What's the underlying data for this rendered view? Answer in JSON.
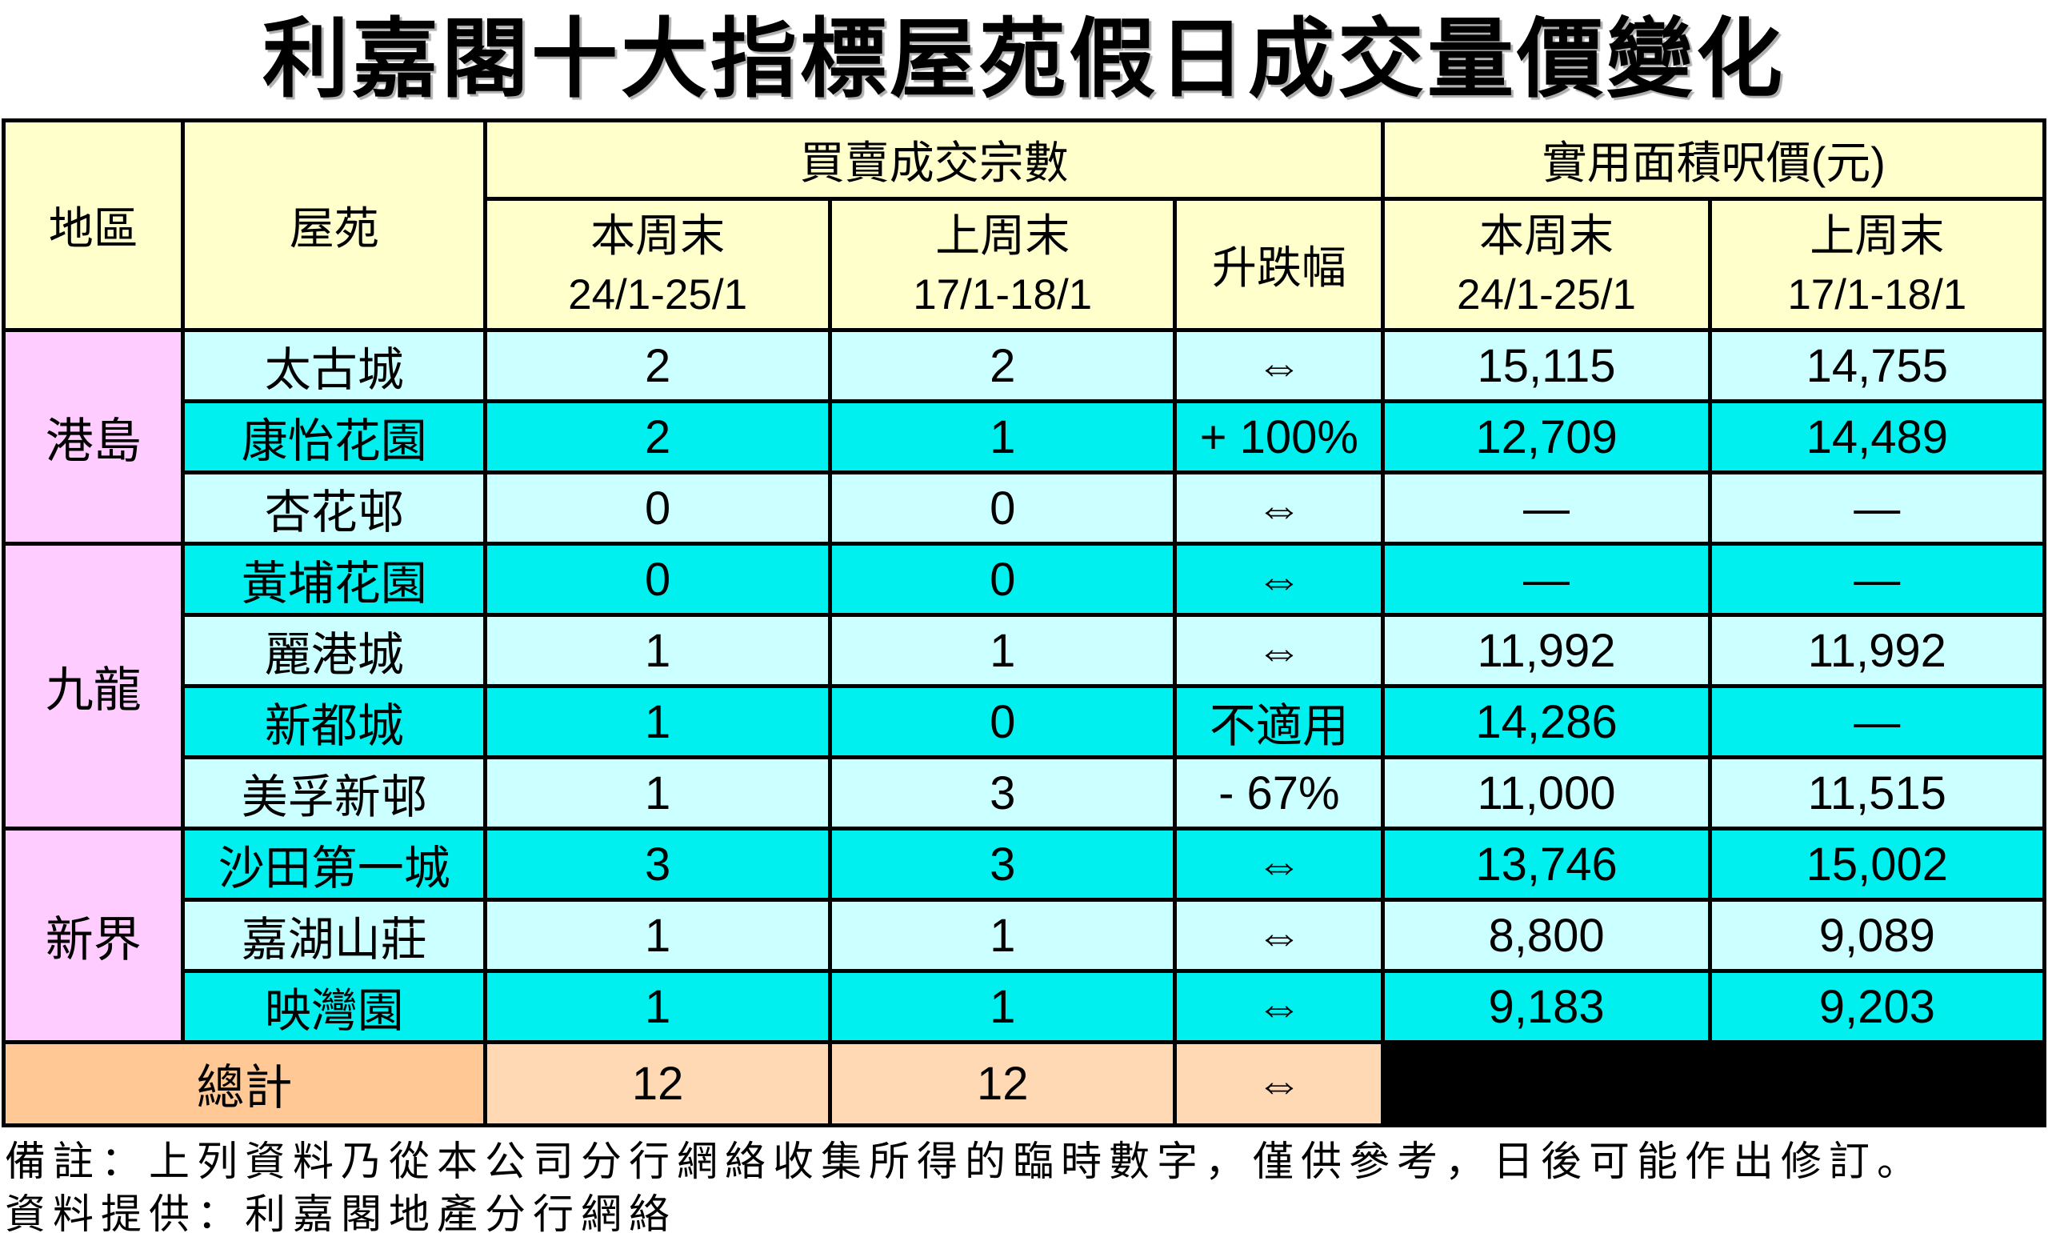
{
  "title": "利嘉閣十大指標屋苑假日成交量價變化",
  "colors": {
    "header_yellow": "#FFFFCC",
    "region_pink": "#FFCCFF",
    "row_light_cyan": "#CCFFFF",
    "row_bright_cyan": "#00F0F0",
    "total_label_orange": "#FFC894",
    "total_value_orange": "#FFD9B3",
    "blank_cell_black": "#000000"
  },
  "table": {
    "headers": {
      "region": "地區",
      "estate": "屋苑",
      "transactions_group": "買賣成交宗數",
      "price_group": "實用面積呎價(元)",
      "this_weekend": "本周末",
      "this_weekend_dates": "24/1-25/1",
      "last_weekend": "上周末",
      "last_weekend_dates": "17/1-18/1",
      "change": "升跌幅"
    },
    "sections": [
      {
        "region": "港島",
        "rows": [
          {
            "estate": "太古城",
            "this_count": "2",
            "last_count": "2",
            "change": "⇔",
            "this_price": "15,115",
            "last_price": "14,755"
          },
          {
            "estate": "康怡花園",
            "this_count": "2",
            "last_count": "1",
            "change": "+ 100%",
            "this_price": "12,709",
            "last_price": "14,489"
          },
          {
            "estate": "杏花邨",
            "this_count": "0",
            "last_count": "0",
            "change": "⇔",
            "this_price": "—",
            "last_price": "—"
          }
        ]
      },
      {
        "region": "九龍",
        "rows": [
          {
            "estate": "黃埔花園",
            "this_count": "0",
            "last_count": "0",
            "change": "⇔",
            "this_price": "—",
            "last_price": "—"
          },
          {
            "estate": "麗港城",
            "this_count": "1",
            "last_count": "1",
            "change": "⇔",
            "this_price": "11,992",
            "last_price": "11,992"
          },
          {
            "estate": "新都城",
            "this_count": "1",
            "last_count": "0",
            "change": "不適用",
            "this_price": "14,286",
            "last_price": "—"
          },
          {
            "estate": "美孚新邨",
            "this_count": "1",
            "last_count": "3",
            "change": "- 67%",
            "this_price": "11,000",
            "last_price": "11,515"
          }
        ]
      },
      {
        "region": "新界",
        "rows": [
          {
            "estate": "沙田第一城",
            "this_count": "3",
            "last_count": "3",
            "change": "⇔",
            "this_price": "13,746",
            "last_price": "15,002"
          },
          {
            "estate": "嘉湖山莊",
            "this_count": "1",
            "last_count": "1",
            "change": "⇔",
            "this_price": "8,800",
            "last_price": "9,089"
          },
          {
            "estate": "映灣園",
            "this_count": "1",
            "last_count": "1",
            "change": "⇔",
            "this_price": "9,183",
            "last_price": "9,203"
          }
        ]
      }
    ],
    "total": {
      "label": "總計",
      "this_count": "12",
      "last_count": "12",
      "change": "⇔"
    }
  },
  "footer": {
    "note": "備註：上列資料乃從本公司分行網絡收集所得的臨時數字，僅供參考，日後可能作出修訂。",
    "source": "資料提供：利嘉閣地產分行網絡"
  },
  "chart_data": {
    "type": "table",
    "title": "利嘉閣十大指標屋苑假日成交量價變化",
    "columns": [
      "地區",
      "屋苑",
      "買賣成交宗數 本周末 24/1-25/1",
      "買賣成交宗數 上周末 17/1-18/1",
      "升跌幅",
      "實用面積呎價(元) 本周末 24/1-25/1",
      "實用面積呎價(元) 上周末 17/1-18/1"
    ],
    "rows": [
      [
        "港島",
        "太古城",
        "2",
        "2",
        "⇔",
        "15,115",
        "14,755"
      ],
      [
        "港島",
        "康怡花園",
        "2",
        "1",
        "+ 100%",
        "12,709",
        "14,489"
      ],
      [
        "港島",
        "杏花邨",
        "0",
        "0",
        "⇔",
        "—",
        "—"
      ],
      [
        "九龍",
        "黃埔花園",
        "0",
        "0",
        "⇔",
        "—",
        "—"
      ],
      [
        "九龍",
        "麗港城",
        "1",
        "1",
        "⇔",
        "11,992",
        "11,992"
      ],
      [
        "九龍",
        "新都城",
        "1",
        "0",
        "不適用",
        "14,286",
        "—"
      ],
      [
        "九龍",
        "美孚新邨",
        "1",
        "3",
        "- 67%",
        "11,000",
        "11,515"
      ],
      [
        "新界",
        "沙田第一城",
        "3",
        "3",
        "⇔",
        "13,746",
        "15,002"
      ],
      [
        "新界",
        "嘉湖山莊",
        "1",
        "1",
        "⇔",
        "8,800",
        "9,089"
      ],
      [
        "新界",
        "映灣園",
        "1",
        "1",
        "⇔",
        "9,183",
        "9,203"
      ]
    ],
    "total_row": [
      "總計",
      "12",
      "12",
      "⇔",
      "",
      ""
    ],
    "notes": [
      "備註：上列資料乃從本公司分行網絡收集所得的臨時數字，僅供參考，日後可能作出修訂。",
      "資料提供：利嘉閣地產分行網絡"
    ]
  }
}
